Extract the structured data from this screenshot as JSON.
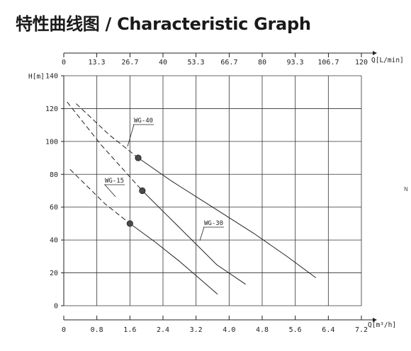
{
  "title": "特性曲线图 / Characteristic Graph",
  "margin_mark": "N",
  "chart_data": {
    "type": "line",
    "x": {
      "label": "Q[m³/h]",
      "range": [
        0,
        7.2
      ],
      "ticks": [
        0,
        0.8,
        1.6,
        2.4,
        3.2,
        4.0,
        4.8,
        5.6,
        6.4,
        7.2
      ],
      "tick_labels": [
        "0",
        "0.8",
        "1.6",
        "2.4",
        "3.2",
        "4.0",
        "4.8",
        "5.6",
        "6.4",
        "7.2"
      ]
    },
    "x_top": {
      "label": "Q[L/min]",
      "range": [
        0,
        120
      ],
      "ticks": [
        0,
        13.3,
        26.7,
        40,
        53.3,
        66.7,
        80,
        93.3,
        106.7,
        120
      ],
      "tick_labels": [
        "0",
        "13.3",
        "26.7",
        "40",
        "53.3",
        "66.7",
        "80",
        "93.3",
        "106.7",
        "120"
      ]
    },
    "y": {
      "label": "H[m]",
      "range": [
        0,
        140
      ],
      "ticks": [
        0,
        20,
        40,
        60,
        80,
        100,
        120,
        140
      ],
      "tick_labels": [
        "0",
        "20",
        "40",
        "60",
        "80",
        "100",
        "120",
        "140"
      ]
    },
    "grid": true,
    "series": [
      {
        "name": "WG-15",
        "dashed": [
          [
            0.15,
            83
          ],
          [
            1.0,
            62
          ],
          [
            1.6,
            50
          ]
        ],
        "solid": [
          [
            1.6,
            50
          ],
          [
            2.2,
            39
          ],
          [
            2.8,
            27
          ],
          [
            3.4,
            14
          ],
          [
            3.72,
            7
          ]
        ],
        "rated_point": [
          1.6,
          50
        ]
      },
      {
        "name": "WG-30",
        "dashed": [
          [
            0.08,
            124
          ],
          [
            0.9,
            98
          ],
          [
            1.9,
            70
          ]
        ],
        "solid": [
          [
            1.9,
            70
          ],
          [
            2.5,
            55
          ],
          [
            3.1,
            40
          ],
          [
            3.7,
            25
          ],
          [
            4.4,
            13
          ]
        ],
        "rated_point": [
          1.9,
          70
        ]
      },
      {
        "name": "WG-40",
        "dashed": [
          [
            0.3,
            123
          ],
          [
            1.1,
            104
          ],
          [
            1.8,
            90
          ]
        ],
        "solid": [
          [
            1.8,
            90
          ],
          [
            2.6,
            76
          ],
          [
            3.6,
            60
          ],
          [
            4.6,
            44
          ],
          [
            5.4,
            30
          ],
          [
            6.1,
            17
          ]
        ],
        "rated_point": [
          1.8,
          90
        ]
      }
    ]
  }
}
